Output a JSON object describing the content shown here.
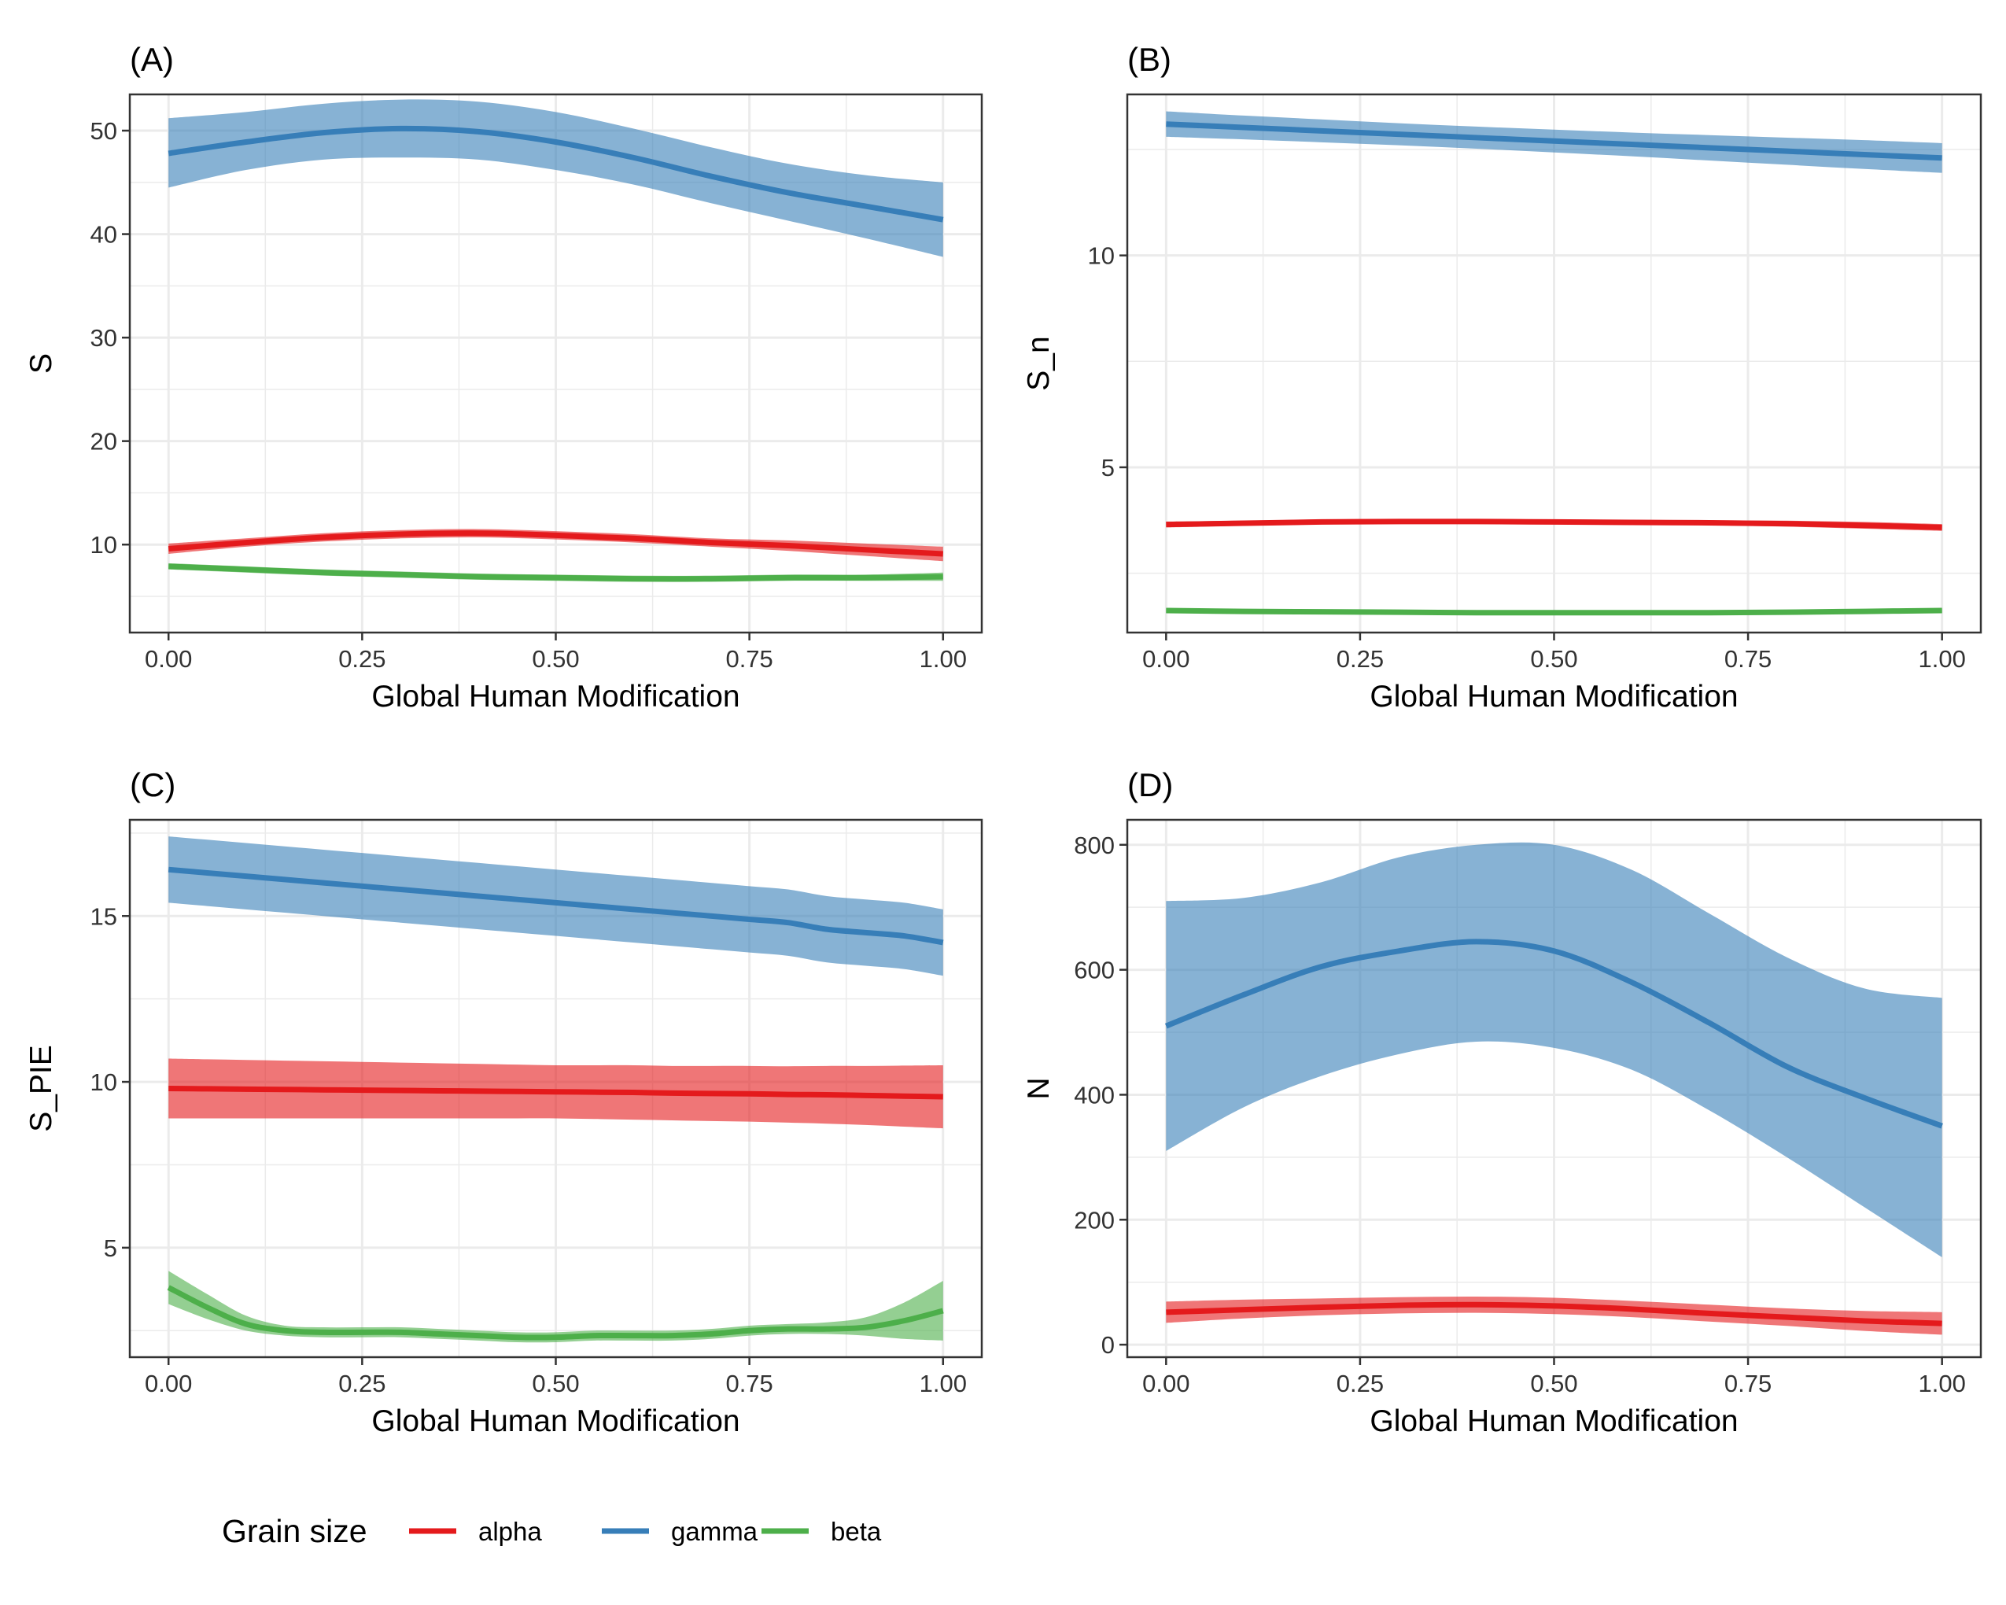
{
  "figure": {
    "legend": {
      "title": "Grain size",
      "entries": [
        {
          "name": "alpha",
          "color": "#E41A1C"
        },
        {
          "name": "gamma",
          "color": "#377EB8"
        },
        {
          "name": "beta",
          "color": "#4DAF4A"
        }
      ]
    },
    "colors": {
      "alpha": "#E41A1C",
      "gamma": "#377EB8",
      "beta": "#4DAF4A",
      "grid": "#EBEBEB",
      "panel_border": "#333333"
    }
  },
  "chart_data": [
    {
      "type": "line",
      "tag": "(A)",
      "xlabel": "Global Human Modification",
      "ylabel": "S",
      "xlim": [
        -0.05,
        1.05
      ],
      "ylim": [
        1.5,
        53.5
      ],
      "xticks": [
        0,
        0.25,
        0.5,
        0.75,
        1
      ],
      "xtick_labels": [
        "0.00",
        "0.25",
        "0.50",
        "0.75",
        "1.00"
      ],
      "yticks": [
        10,
        20,
        30,
        40,
        50
      ],
      "ytick_labels": [
        "10",
        "20",
        "30",
        "40",
        "50"
      ],
      "grid": true,
      "legend": "bottom",
      "x": [
        0,
        0.1,
        0.2,
        0.3,
        0.4,
        0.5,
        0.6,
        0.7,
        0.8,
        0.9,
        1.0
      ],
      "series": [
        {
          "name": "gamma",
          "y": [
            47.8,
            48.9,
            49.8,
            50.2,
            49.9,
            48.9,
            47.4,
            45.6,
            44.0,
            42.7,
            41.4
          ],
          "lower": [
            44.5,
            46.2,
            47.2,
            47.4,
            47.2,
            46.2,
            44.8,
            43.0,
            41.3,
            39.6,
            37.8
          ],
          "upper": [
            51.2,
            51.8,
            52.6,
            53.0,
            52.8,
            51.8,
            50.2,
            48.4,
            46.8,
            45.7,
            45.0
          ]
        },
        {
          "name": "alpha",
          "y": [
            9.6,
            10.2,
            10.7,
            11.0,
            11.1,
            10.9,
            10.6,
            10.2,
            9.9,
            9.5,
            9.1
          ],
          "lower": [
            9.1,
            9.8,
            10.3,
            10.6,
            10.7,
            10.5,
            10.2,
            9.8,
            9.4,
            8.9,
            8.4
          ],
          "upper": [
            10.1,
            10.6,
            11.1,
            11.4,
            11.5,
            11.3,
            11.0,
            10.6,
            10.4,
            10.1,
            9.8
          ]
        },
        {
          "name": "beta",
          "y": [
            7.9,
            7.6,
            7.3,
            7.1,
            6.9,
            6.8,
            6.7,
            6.7,
            6.8,
            6.8,
            6.9
          ],
          "lower": [
            7.6,
            7.3,
            7.0,
            6.8,
            6.6,
            6.5,
            6.4,
            6.4,
            6.5,
            6.5,
            6.5
          ],
          "upper": [
            8.2,
            7.9,
            7.6,
            7.4,
            7.2,
            7.1,
            7.0,
            7.0,
            7.1,
            7.1,
            7.3
          ]
        }
      ]
    },
    {
      "type": "line",
      "tag": "(B)",
      "xlabel": "Global Human Modification",
      "ylabel": "S_n",
      "xlim": [
        -0.05,
        1.05
      ],
      "ylim": [
        1.1,
        13.8
      ],
      "xticks": [
        0,
        0.25,
        0.5,
        0.75,
        1
      ],
      "xtick_labels": [
        "0.00",
        "0.25",
        "0.50",
        "0.75",
        "1.00"
      ],
      "yticks": [
        5,
        10
      ],
      "ytick_labels": [
        "5",
        "10"
      ],
      "grid": true,
      "legend": "bottom",
      "x": [
        0,
        0.1,
        0.2,
        0.3,
        0.4,
        0.5,
        0.6,
        0.7,
        0.8,
        0.9,
        1.0
      ],
      "series": [
        {
          "name": "gamma",
          "y": [
            13.1,
            13.02,
            12.94,
            12.86,
            12.78,
            12.7,
            12.62,
            12.54,
            12.46,
            12.38,
            12.3
          ],
          "lower": [
            12.8,
            12.74,
            12.67,
            12.6,
            12.52,
            12.43,
            12.34,
            12.24,
            12.14,
            12.04,
            11.95
          ],
          "upper": [
            13.4,
            13.3,
            13.21,
            13.12,
            13.04,
            12.97,
            12.9,
            12.84,
            12.78,
            12.72,
            12.65
          ]
        },
        {
          "name": "alpha",
          "y": [
            3.65,
            3.68,
            3.71,
            3.72,
            3.72,
            3.71,
            3.7,
            3.69,
            3.67,
            3.63,
            3.58
          ],
          "lower": [
            3.58,
            3.62,
            3.65,
            3.66,
            3.66,
            3.65,
            3.64,
            3.63,
            3.6,
            3.55,
            3.5
          ],
          "upper": [
            3.72,
            3.74,
            3.77,
            3.78,
            3.78,
            3.77,
            3.76,
            3.75,
            3.74,
            3.71,
            3.66
          ]
        },
        {
          "name": "beta",
          "y": [
            1.62,
            1.6,
            1.59,
            1.58,
            1.57,
            1.57,
            1.57,
            1.57,
            1.58,
            1.6,
            1.62
          ],
          "lower": [
            1.57,
            1.55,
            1.54,
            1.53,
            1.52,
            1.52,
            1.52,
            1.52,
            1.53,
            1.55,
            1.57
          ],
          "upper": [
            1.67,
            1.65,
            1.64,
            1.63,
            1.62,
            1.62,
            1.62,
            1.62,
            1.63,
            1.65,
            1.67
          ]
        }
      ]
    },
    {
      "type": "line",
      "tag": "(C)",
      "xlabel": "Global Human Modification",
      "ylabel": "S_PIE",
      "xlim": [
        -0.05,
        1.05
      ],
      "ylim": [
        1.7,
        17.9
      ],
      "xticks": [
        0,
        0.25,
        0.5,
        0.75,
        1
      ],
      "xtick_labels": [
        "0.00",
        "0.25",
        "0.50",
        "0.75",
        "1.00"
      ],
      "yticks": [
        5,
        10,
        15
      ],
      "ytick_labels": [
        "5",
        "10",
        "15"
      ],
      "grid": true,
      "legend": "bottom",
      "x": [
        0,
        0.05,
        0.1,
        0.15,
        0.2,
        0.25,
        0.3,
        0.35,
        0.4,
        0.45,
        0.5,
        0.55,
        0.6,
        0.65,
        0.7,
        0.75,
        0.8,
        0.85,
        0.9,
        0.95,
        1.0
      ],
      "series": [
        {
          "name": "gamma",
          "y": [
            16.4,
            16.3,
            16.2,
            16.1,
            16.0,
            15.9,
            15.8,
            15.7,
            15.6,
            15.5,
            15.4,
            15.3,
            15.2,
            15.1,
            15.0,
            14.9,
            14.8,
            14.6,
            14.5,
            14.4,
            14.2
          ],
          "lower": [
            15.4,
            15.3,
            15.2,
            15.1,
            15.0,
            14.9,
            14.8,
            14.7,
            14.6,
            14.5,
            14.4,
            14.3,
            14.2,
            14.1,
            14.0,
            13.9,
            13.8,
            13.6,
            13.5,
            13.4,
            13.2
          ],
          "upper": [
            17.4,
            17.3,
            17.2,
            17.1,
            17.0,
            16.9,
            16.8,
            16.7,
            16.6,
            16.5,
            16.4,
            16.3,
            16.2,
            16.1,
            16.0,
            15.9,
            15.8,
            15.6,
            15.5,
            15.4,
            15.2
          ]
        },
        {
          "name": "alpha",
          "y": [
            9.8,
            9.79,
            9.78,
            9.77,
            9.76,
            9.75,
            9.74,
            9.73,
            9.72,
            9.71,
            9.7,
            9.69,
            9.68,
            9.66,
            9.65,
            9.64,
            9.62,
            9.61,
            9.59,
            9.57,
            9.55
          ],
          "lower": [
            8.9,
            8.9,
            8.9,
            8.9,
            8.9,
            8.9,
            8.9,
            8.9,
            8.9,
            8.9,
            8.9,
            8.88,
            8.86,
            8.84,
            8.82,
            8.8,
            8.77,
            8.74,
            8.7,
            8.65,
            8.6
          ],
          "upper": [
            10.7,
            10.68,
            10.66,
            10.64,
            10.62,
            10.6,
            10.58,
            10.56,
            10.54,
            10.52,
            10.5,
            10.5,
            10.5,
            10.48,
            10.48,
            10.48,
            10.47,
            10.48,
            10.48,
            10.49,
            10.5
          ]
        },
        {
          "name": "beta",
          "y": [
            3.8,
            3.2,
            2.7,
            2.5,
            2.45,
            2.45,
            2.45,
            2.4,
            2.35,
            2.3,
            2.3,
            2.35,
            2.35,
            2.35,
            2.4,
            2.5,
            2.55,
            2.55,
            2.6,
            2.8,
            3.1
          ],
          "lower": [
            3.3,
            2.85,
            2.5,
            2.35,
            2.3,
            2.3,
            2.3,
            2.25,
            2.2,
            2.15,
            2.15,
            2.2,
            2.2,
            2.2,
            2.25,
            2.35,
            2.4,
            2.4,
            2.35,
            2.25,
            2.2
          ],
          "upper": [
            4.3,
            3.6,
            2.95,
            2.65,
            2.6,
            2.6,
            2.6,
            2.55,
            2.5,
            2.45,
            2.45,
            2.5,
            2.5,
            2.5,
            2.55,
            2.65,
            2.7,
            2.75,
            2.9,
            3.35,
            4.0
          ]
        }
      ]
    },
    {
      "type": "line",
      "tag": "(D)",
      "xlabel": "Global Human Modification",
      "ylabel": "N",
      "xlim": [
        -0.05,
        1.05
      ],
      "ylim": [
        -20,
        840
      ],
      "xticks": [
        0,
        0.25,
        0.5,
        0.75,
        1
      ],
      "xtick_labels": [
        "0.00",
        "0.25",
        "0.50",
        "0.75",
        "1.00"
      ],
      "yticks": [
        0,
        200,
        400,
        600,
        800
      ],
      "ytick_labels": [
        "0",
        "200",
        "400",
        "600",
        "800"
      ],
      "grid": true,
      "legend": "bottom",
      "x": [
        0,
        0.1,
        0.2,
        0.3,
        0.4,
        0.5,
        0.6,
        0.7,
        0.8,
        0.9,
        1.0
      ],
      "series": [
        {
          "name": "gamma",
          "y": [
            510,
            560,
            605,
            630,
            645,
            630,
            580,
            515,
            445,
            395,
            350
          ],
          "lower": [
            310,
            380,
            430,
            465,
            485,
            475,
            440,
            375,
            300,
            220,
            140
          ],
          "upper": [
            710,
            715,
            740,
            780,
            800,
            800,
            760,
            690,
            620,
            570,
            555
          ]
        },
        {
          "name": "alpha",
          "y": [
            52,
            56,
            60,
            63,
            64,
            62,
            57,
            50,
            44,
            38,
            34
          ],
          "lower": [
            35,
            42,
            47,
            50,
            51,
            49,
            44,
            37,
            30,
            22,
            16
          ],
          "upper": [
            69,
            72,
            74,
            76,
            77,
            75,
            70,
            64,
            58,
            54,
            52
          ]
        }
      ]
    }
  ]
}
